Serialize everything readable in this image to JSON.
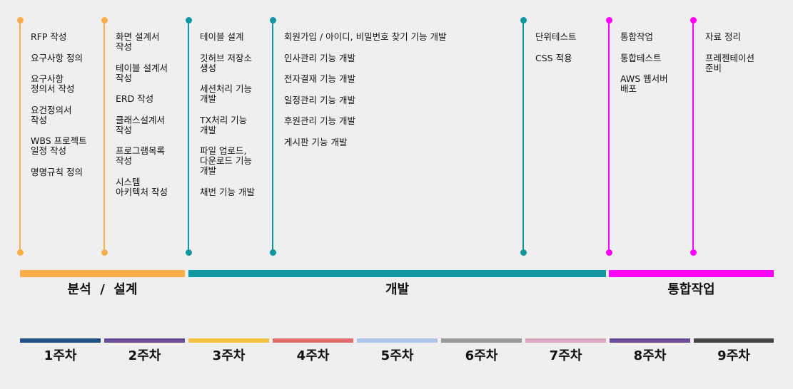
{
  "colors": {
    "analysis": "#f9ad47",
    "development": "#0f98a3",
    "integration": "#ff00ff"
  },
  "columns": [
    {
      "color": "#f9ad47",
      "tasks": [
        "RFP 작성",
        "요구사항 정의",
        "요구사항\n정의서 작성",
        "요건정의서\n작성",
        "WBS 프로젝트\n일정 작성",
        "명명규칙 정의"
      ]
    },
    {
      "color": "#f9ad47",
      "tasks": [
        "화면 설계서\n작성",
        "테이블 설계서\n작성",
        "ERD 작성",
        "클래스설계서\n작성",
        "프로그램목록\n작성",
        "시스템\n아키텍처 작성"
      ]
    },
    {
      "color": "#0f98a3",
      "tasks": [
        "테이블 설계",
        "깃허브 저장소\n생성",
        "세션처리 기능\n개발",
        "TX처리 기능\n개발",
        "파일 업로드,\n다운로드 기능\n개발",
        "채번 기능 개발"
      ]
    },
    {
      "color": "#0f98a3",
      "tasks": [
        "회원가입 / 아이디, 비밀번호 찾기 기능 개발",
        "인사관리 기능 개발",
        "전자결재 기능 개발",
        "일정관리 기능 개발",
        "후원관리 기능 개발",
        "게시판 기능 개발"
      ]
    },
    {
      "color": "#0f98a3",
      "tasks": [
        "단위테스트",
        "CSS 적용"
      ]
    },
    {
      "color": "#ff00ff",
      "tasks": [
        "통합작업",
        "통합테스트",
        "AWS 웹서버\n배포"
      ]
    },
    {
      "color": "#ff00ff",
      "tasks": [
        "자료 정리",
        "프레젠테이션\n준비"
      ]
    }
  ],
  "phases": [
    {
      "label": "분석  /  설계",
      "color": "#f9ad47"
    },
    {
      "label": "개발",
      "color": "#0f98a3"
    },
    {
      "label": "통합작업",
      "color": "#ff00ff"
    }
  ],
  "weeks": [
    {
      "label": "1주차",
      "color": "#1e4f86"
    },
    {
      "label": "2주차",
      "color": "#6b4c9a"
    },
    {
      "label": "3주차",
      "color": "#f2c140"
    },
    {
      "label": "4주차",
      "color": "#e16c6c"
    },
    {
      "label": "5주차",
      "color": "#aec6eb"
    },
    {
      "label": "6주차",
      "color": "#9a9a9a"
    },
    {
      "label": "7주차",
      "color": "#dba8c0"
    },
    {
      "label": "8주차",
      "color": "#6b4c9a"
    },
    {
      "label": "9주차",
      "color": "#444444"
    }
  ]
}
